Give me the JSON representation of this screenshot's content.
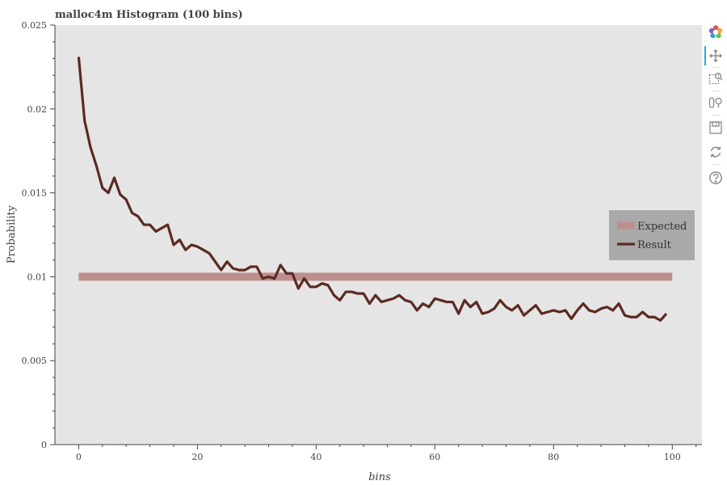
{
  "chart_data": {
    "type": "line",
    "title": "malloc4m Histogram (100 bins)",
    "xlabel": "bins",
    "ylabel": "Probability",
    "xlim": [
      -4,
      105
    ],
    "ylim": [
      0,
      0.025
    ],
    "x_ticks": [
      0,
      20,
      40,
      60,
      80,
      100
    ],
    "x_tick_labels": [
      "0",
      "20",
      "40",
      "60",
      "80",
      "100"
    ],
    "y_ticks": [
      0,
      0.005,
      0.01,
      0.015,
      0.02,
      0.025
    ],
    "y_tick_labels": [
      "0",
      "0.005",
      "0.01",
      "0.015",
      "0.02",
      "0.025"
    ],
    "grid": false,
    "legend_position": "right",
    "series": [
      {
        "name": "Expected",
        "color": "#bc8f8f",
        "x": [
          0,
          100
        ],
        "values": [
          0.01,
          0.01
        ]
      },
      {
        "name": "Result",
        "color": "#5c2a22",
        "x": [
          0,
          1,
          2,
          3,
          4,
          5,
          6,
          7,
          8,
          9,
          10,
          11,
          12,
          13,
          14,
          15,
          16,
          17,
          18,
          19,
          20,
          21,
          22,
          23,
          24,
          25,
          26,
          27,
          28,
          29,
          30,
          31,
          32,
          33,
          34,
          35,
          36,
          37,
          38,
          39,
          40,
          41,
          42,
          43,
          44,
          45,
          46,
          47,
          48,
          49,
          50,
          51,
          52,
          53,
          54,
          55,
          56,
          57,
          58,
          59,
          60,
          61,
          62,
          63,
          64,
          65,
          66,
          67,
          68,
          69,
          70,
          71,
          72,
          73,
          74,
          75,
          76,
          77,
          78,
          79,
          80,
          81,
          82,
          83,
          84,
          85,
          86,
          87,
          88,
          89,
          90,
          91,
          92,
          93,
          94,
          95,
          96,
          97,
          98,
          99
        ],
        "values": [
          0.0231,
          0.0193,
          0.0177,
          0.0166,
          0.0153,
          0.015,
          0.0159,
          0.0149,
          0.0146,
          0.0138,
          0.0136,
          0.0131,
          0.0131,
          0.0127,
          0.0129,
          0.0131,
          0.0119,
          0.0122,
          0.0116,
          0.0119,
          0.0118,
          0.0116,
          0.0114,
          0.0109,
          0.0104,
          0.0109,
          0.0105,
          0.0104,
          0.0104,
          0.0106,
          0.0106,
          0.0099,
          0.01,
          0.0099,
          0.0107,
          0.0102,
          0.0102,
          0.0093,
          0.0099,
          0.0094,
          0.0094,
          0.0096,
          0.0095,
          0.0089,
          0.0086,
          0.0091,
          0.0091,
          0.009,
          0.009,
          0.0084,
          0.0089,
          0.0085,
          0.0086,
          0.0087,
          0.0089,
          0.0086,
          0.0085,
          0.008,
          0.0084,
          0.0082,
          0.0087,
          0.0086,
          0.0085,
          0.0085,
          0.0078,
          0.0086,
          0.0082,
          0.0085,
          0.0078,
          0.0079,
          0.0081,
          0.0086,
          0.0082,
          0.008,
          0.0083,
          0.0077,
          0.008,
          0.0083,
          0.0078,
          0.0079,
          0.008,
          0.0079,
          0.008,
          0.0075,
          0.008,
          0.0084,
          0.008,
          0.0079,
          0.0081,
          0.0082,
          0.008,
          0.0084,
          0.0077,
          0.0076,
          0.0076,
          0.0079,
          0.0076,
          0.0076,
          0.0074,
          0.0078
        ]
      }
    ]
  },
  "colors": {
    "plot_background": "#e5e5e5",
    "legend_background": "#a9a9a9",
    "toolbar_accent": "#26aae1"
  },
  "toolbar": {
    "tools": [
      {
        "name": "bokeh-logo-icon"
      },
      {
        "name": "pan-tool-icon"
      },
      {
        "name": "box-zoom-tool-icon"
      },
      {
        "name": "wheel-zoom-tool-icon"
      },
      {
        "name": "save-tool-icon"
      },
      {
        "name": "reset-tool-icon"
      },
      {
        "name": "help-tool-icon"
      }
    ]
  }
}
